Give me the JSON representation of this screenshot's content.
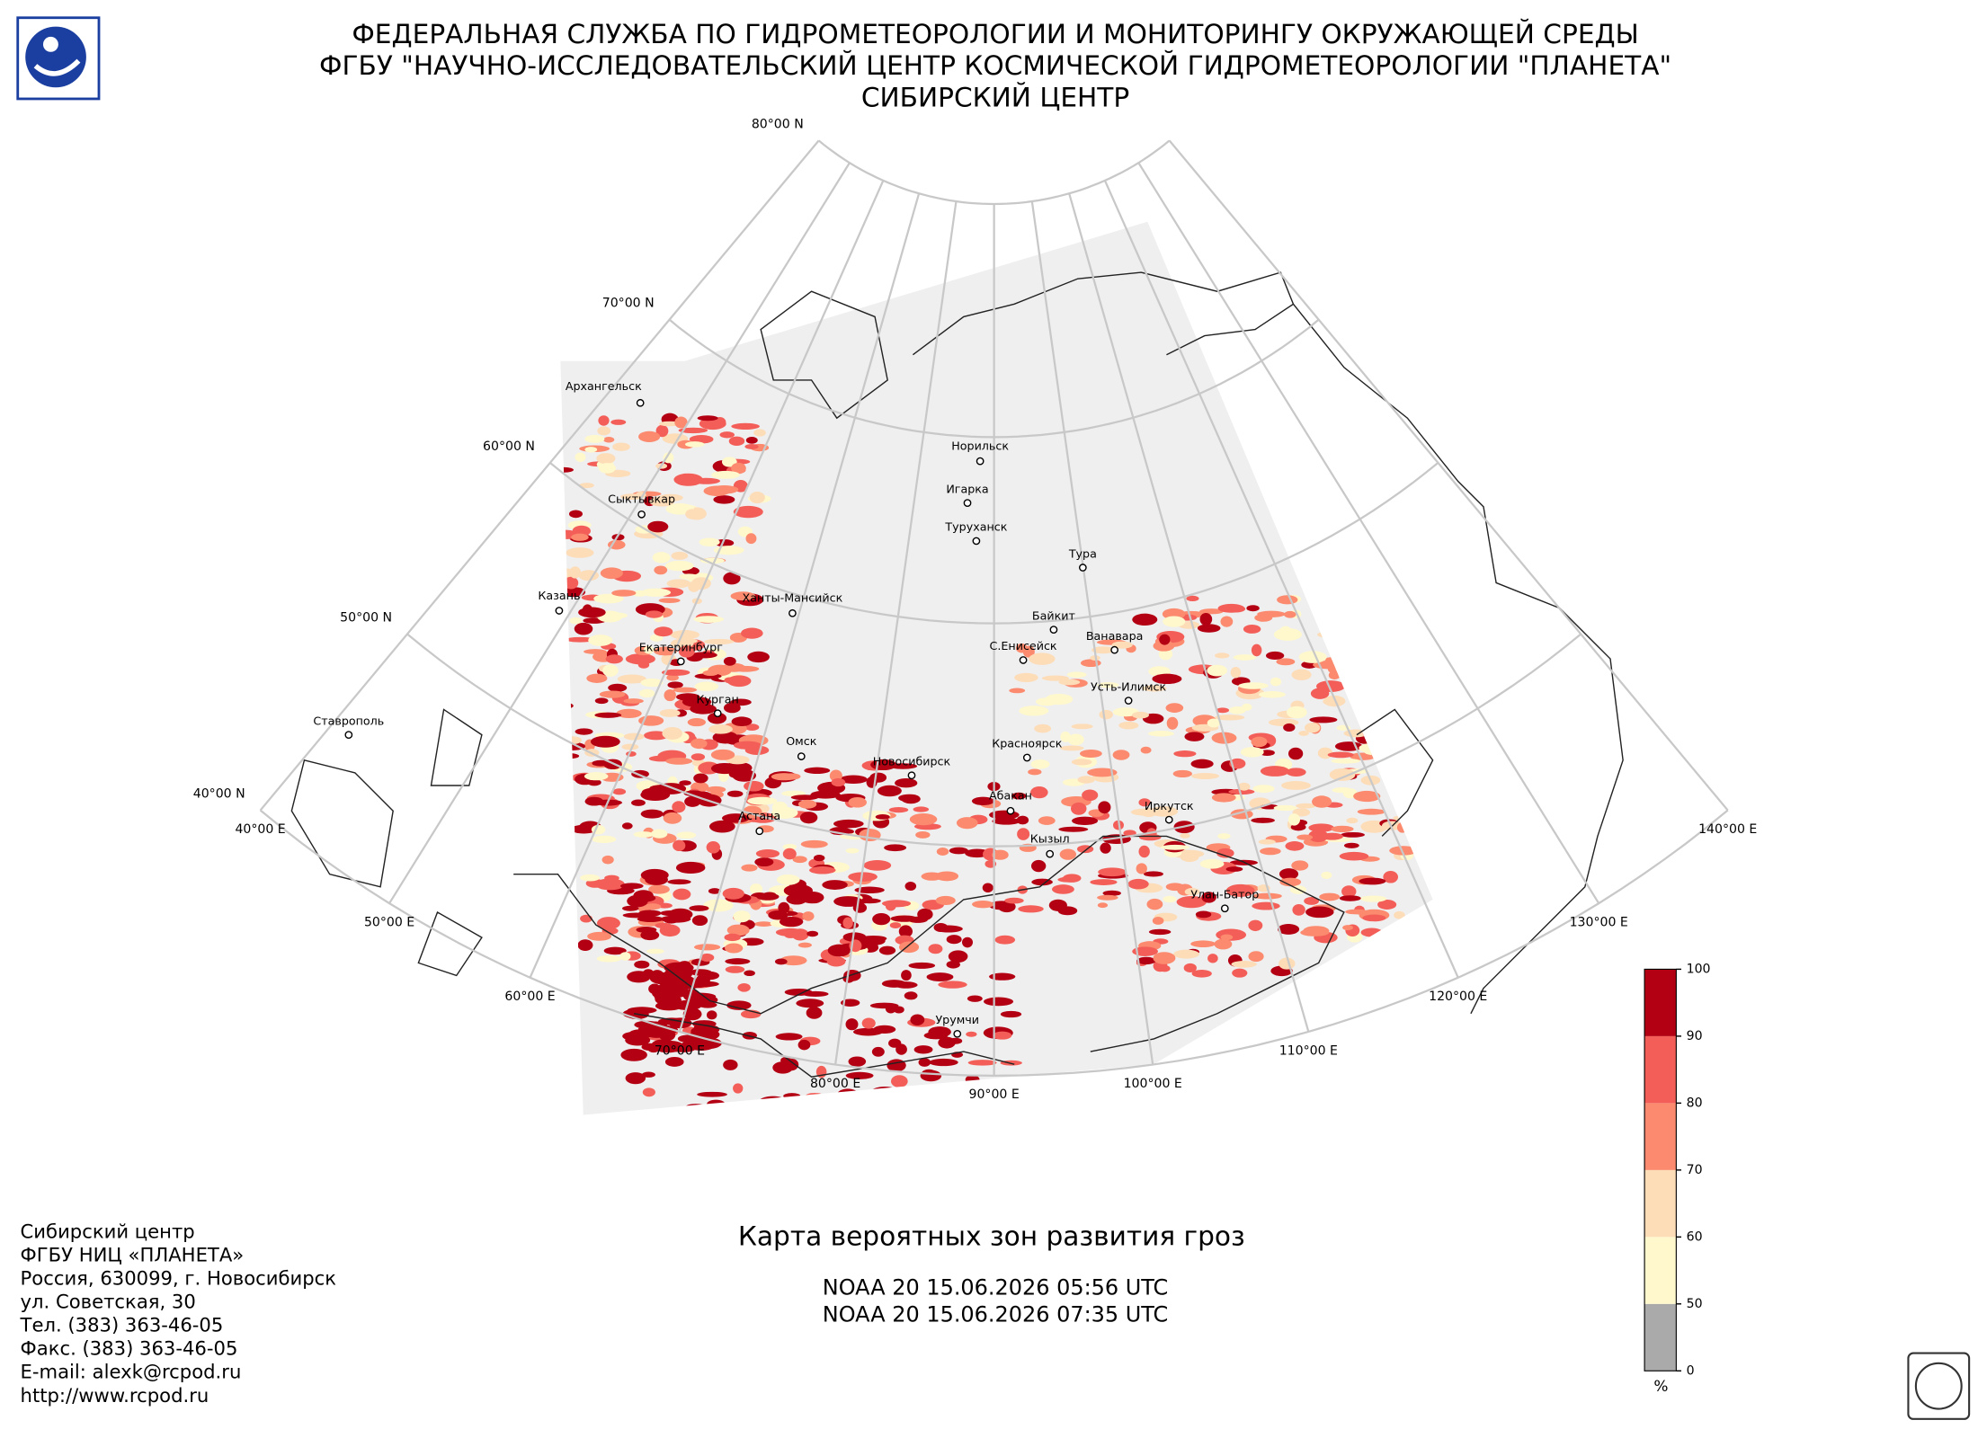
{
  "header": {
    "lines": [
      "ФЕДЕРАЛЬНАЯ СЛУЖБА ПО ГИДРОМЕТЕОРОЛОГИИ И МОНИТОРИНГУ ОКРУЖАЮЩЕЙ СРЕДЫ",
      "ФГБУ \"НАУЧНО-ИССЛЕДОВАТЕЛЬСКИЙ ЦЕНТР КОСМИЧЕСКОЙ ГИДРОМЕТЕОРОЛОГИИ \"ПЛАНЕТА\"",
      "СИБИРСКИЙ ЦЕНТР"
    ]
  },
  "map": {
    "title": "Карта вероятных зон развития гроз",
    "passes": [
      "NOAA 20 15.06.2026  05:56 UTC",
      "NOAA 20 15.06.2026  07:35 UTC"
    ],
    "latitudes": [
      {
        "value": 80,
        "label": "80°00 N"
      },
      {
        "value": 70,
        "label": "70°00 N"
      },
      {
        "value": 60,
        "label": "60°00 N"
      },
      {
        "value": 50,
        "label": "50°00 N"
      },
      {
        "value": 40,
        "label": "40°00 N"
      }
    ],
    "longitudes": [
      {
        "value": 40,
        "label": "40°00 E"
      },
      {
        "value": 50,
        "label": "50°00 E"
      },
      {
        "value": 60,
        "label": "60°00 E"
      },
      {
        "value": 70,
        "label": "70°00 E"
      },
      {
        "value": 80,
        "label": "80°00 E"
      },
      {
        "value": 90,
        "label": "90°00 E"
      },
      {
        "value": 100,
        "label": "100°00 E"
      },
      {
        "value": 110,
        "label": "110°00 E"
      },
      {
        "value": 120,
        "label": "120°00 E"
      },
      {
        "value": 130,
        "label": "130°00 E"
      },
      {
        "value": 140,
        "label": "140°00 E"
      }
    ],
    "cities": [
      "Архангельск",
      "Сыктывкар",
      "Казань",
      "Екатеринбург",
      "Курган",
      "Ставрополь",
      "Ханты-Мансийск",
      "Омск",
      "Новосибирск",
      "Астана",
      "Норильск",
      "Игарка",
      "Туруханск",
      "Тура",
      "Байкит",
      "Ванавара",
      "С.Енисейск",
      "Усть-Илимск",
      "Красноярск",
      "Абакан",
      "Кызыл",
      "Иркутск",
      "Улан-Батор",
      "Урумчи"
    ]
  },
  "legend": {
    "ticks": [
      0,
      50,
      60,
      70,
      80,
      90,
      100
    ],
    "colors": [
      "#aaaaaa",
      "#fff8cc",
      "#fddcb8",
      "#fb8a6e",
      "#f35f58",
      "#b30012"
    ],
    "unit": "%"
  },
  "footer": {
    "lines": [
      "Сибирский центр",
      "ФГБУ НИЦ «ПЛАНЕТА»",
      "Россия, 630099, г. Новосибирск",
      "ул. Советская, 30",
      "Тел. (383) 363-46-05",
      "Факс. (383) 363-46-05",
      "E-mail: alexk@rcpod.ru",
      "http://www.rcpod.ru"
    ]
  }
}
